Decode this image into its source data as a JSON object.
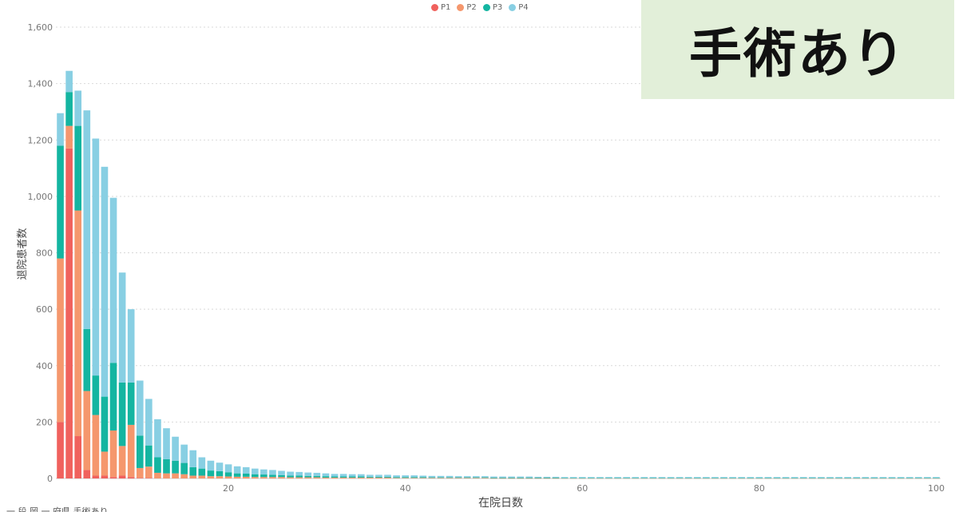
{
  "badge": {
    "text": "手術あり"
  },
  "legend": [
    {
      "label": "P1",
      "color": "#f0615d"
    },
    {
      "label": "P2",
      "color": "#f5976d"
    },
    {
      "label": "P3",
      "color": "#14b5a1"
    },
    {
      "label": "P4",
      "color": "#88cfe3"
    }
  ],
  "footer_note": "一 段 岡 一 府県 手術あり",
  "chart_data": {
    "type": "bar",
    "stacked": true,
    "xlabel": "在院日数",
    "ylabel": "退院患者数",
    "ylim": [
      0,
      1600
    ],
    "yticks": [
      0,
      200,
      400,
      600,
      800,
      1000,
      1200,
      1400,
      1600
    ],
    "xticks": [
      20,
      40,
      60,
      80,
      100
    ],
    "xlim": [
      0,
      100
    ],
    "grid": true,
    "legend_position": "top-center",
    "x": [
      1,
      2,
      3,
      4,
      5,
      6,
      7,
      8,
      9,
      10,
      11,
      12,
      13,
      14,
      15,
      16,
      17,
      18,
      19,
      20,
      21,
      22,
      23,
      24,
      25,
      26,
      27,
      28,
      29,
      30,
      31,
      32,
      33,
      34,
      35,
      36,
      37,
      38,
      39,
      40,
      41,
      42,
      43,
      44,
      45,
      46,
      47,
      48,
      49,
      50,
      51,
      52,
      53,
      54,
      55,
      56,
      57,
      58,
      59,
      60,
      61,
      62,
      63,
      64,
      65,
      66,
      67,
      68,
      69,
      70,
      71,
      72,
      73,
      74,
      75,
      76,
      77,
      78,
      79,
      80,
      81,
      82,
      83,
      84,
      85,
      86,
      87,
      88,
      89,
      90,
      91,
      92,
      93,
      94,
      95,
      96,
      97,
      98,
      99,
      100
    ],
    "series": [
      {
        "name": "P1",
        "values": [
          200,
          1170,
          150,
          30,
          10,
          10,
          5,
          10,
          5,
          2,
          2,
          0,
          0,
          0,
          0,
          0,
          0,
          0,
          0,
          0,
          0,
          0,
          0,
          0,
          0,
          0,
          0,
          0,
          0,
          0,
          0,
          0,
          0,
          0,
          0,
          0,
          0,
          0,
          0,
          0,
          0,
          0,
          0,
          0,
          0,
          0,
          0,
          0,
          0,
          0,
          0,
          0,
          0,
          0,
          0,
          0,
          0,
          0,
          0,
          0,
          0,
          0,
          0,
          0,
          0,
          0,
          0,
          0,
          0,
          0,
          0,
          0,
          0,
          0,
          0,
          0,
          0,
          0,
          0,
          0,
          0,
          0,
          0,
          0,
          0,
          0,
          0,
          0,
          0,
          0,
          0,
          0,
          0,
          0,
          0,
          0,
          0,
          0,
          0,
          0
        ]
      },
      {
        "name": "P2",
        "values": [
          580,
          80,
          800,
          280,
          215,
          85,
          165,
          105,
          185,
          35,
          40,
          20,
          18,
          18,
          15,
          10,
          10,
          8,
          8,
          7,
          6,
          6,
          5,
          5,
          5,
          5,
          4,
          4,
          4,
          4,
          3,
          3,
          3,
          3,
          3,
          3,
          3,
          3,
          2,
          2,
          2,
          2,
          2,
          2,
          2,
          2,
          2,
          2,
          2,
          1,
          1,
          1,
          1,
          1,
          1,
          1,
          1,
          1,
          1,
          1,
          1,
          1,
          1,
          1,
          1,
          1,
          1,
          1,
          1,
          1,
          1,
          1,
          1,
          1,
          1,
          1,
          1,
          1,
          1,
          1,
          1,
          1,
          1,
          1,
          1,
          1,
          1,
          1,
          1,
          1,
          1,
          1,
          1,
          1,
          1,
          1,
          1,
          1,
          1,
          1
        ]
      },
      {
        "name": "P3",
        "values": [
          400,
          120,
          300,
          220,
          140,
          195,
          240,
          225,
          150,
          115,
          75,
          55,
          50,
          45,
          40,
          30,
          25,
          20,
          18,
          15,
          12,
          11,
          10,
          9,
          8,
          7,
          6,
          6,
          5,
          5,
          5,
          4,
          4,
          4,
          4,
          3,
          3,
          3,
          3,
          3,
          3,
          3,
          2,
          2,
          2,
          2,
          2,
          2,
          2,
          2,
          2,
          2,
          2,
          2,
          2,
          2,
          2,
          1,
          1,
          1,
          1,
          1,
          1,
          1,
          1,
          1,
          1,
          1,
          1,
          1,
          1,
          1,
          1,
          1,
          1,
          1,
          1,
          1,
          1,
          1,
          1,
          1,
          1,
          1,
          1,
          1,
          1,
          1,
          1,
          1,
          1,
          1,
          1,
          1,
          1,
          1,
          1,
          1,
          1,
          1
        ]
      },
      {
        "name": "P4",
        "values": [
          115,
          75,
          125,
          775,
          840,
          815,
          585,
          390,
          260,
          195,
          165,
          135,
          110,
          85,
          65,
          60,
          40,
          35,
          30,
          28,
          25,
          23,
          20,
          18,
          17,
          15,
          14,
          13,
          12,
          11,
          10,
          9,
          9,
          8,
          8,
          7,
          7,
          7,
          6,
          6,
          6,
          5,
          5,
          5,
          5,
          4,
          4,
          4,
          4,
          4,
          4,
          4,
          4,
          4,
          3,
          3,
          3,
          3,
          3,
          3,
          3,
          3,
          3,
          3,
          3,
          3,
          3,
          3,
          3,
          3,
          3,
          3,
          3,
          3,
          3,
          3,
          3,
          3,
          3,
          3,
          3,
          3,
          3,
          3,
          3,
          3,
          3,
          3,
          3,
          3,
          3,
          3,
          3,
          3,
          3,
          3,
          3,
          3,
          3,
          3
        ]
      }
    ]
  }
}
